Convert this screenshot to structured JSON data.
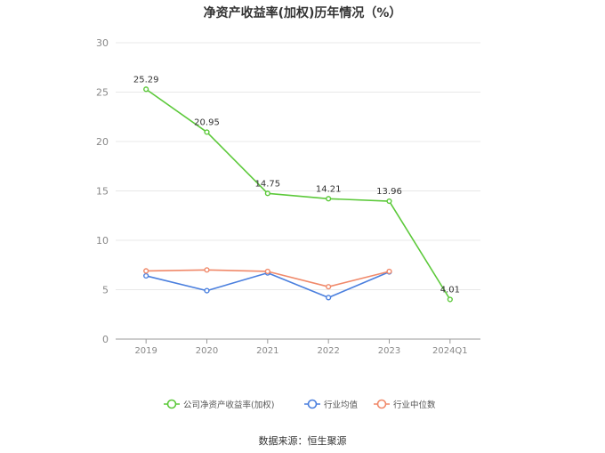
{
  "chart_data": {
    "type": "line",
    "title": "净资产收益率(加权)历年情况（%）",
    "categories": [
      "2019",
      "2020",
      "2021",
      "2022",
      "2023",
      "2024Q1"
    ],
    "ylim": [
      0,
      30
    ],
    "yticks": [
      0,
      5,
      10,
      15,
      20,
      25,
      30
    ],
    "grid": true,
    "legend_position": "bottom",
    "series": [
      {
        "name": "公司净资产收益率(加权)",
        "color": "#5cc93a",
        "values": [
          25.29,
          20.95,
          14.75,
          14.21,
          13.96,
          4.01
        ],
        "labels": [
          "25.29",
          "20.95",
          "14.75",
          "14.21",
          "13.96",
          "4.01"
        ]
      },
      {
        "name": "行业均值",
        "color": "#4a7fde",
        "values": [
          6.4,
          4.9,
          6.7,
          4.2,
          6.8,
          null
        ]
      },
      {
        "name": "行业中位数",
        "color": "#f0896a",
        "values": [
          6.9,
          7.0,
          6.85,
          5.3,
          6.85,
          null
        ]
      }
    ]
  },
  "source": "数据来源：恒生聚源"
}
